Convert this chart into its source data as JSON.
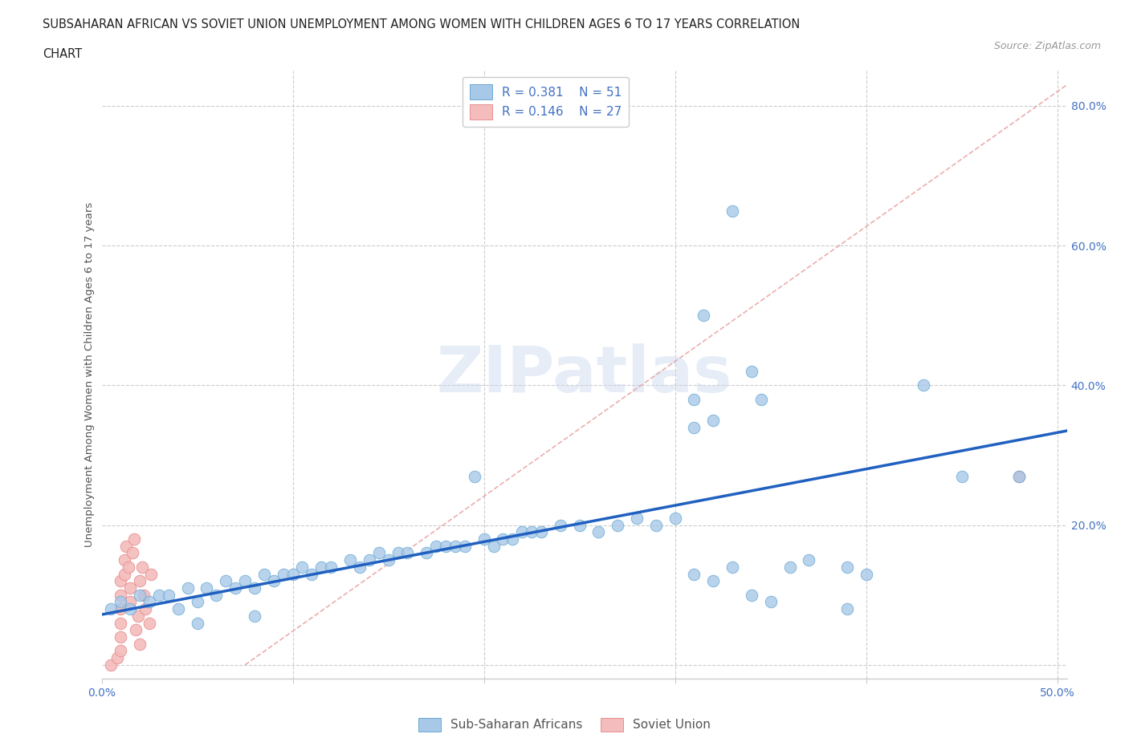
{
  "title_line1": "SUBSAHARAN AFRICAN VS SOVIET UNION UNEMPLOYMENT AMONG WOMEN WITH CHILDREN AGES 6 TO 17 YEARS CORRELATION",
  "title_line2": "CHART",
  "source_text": "Source: ZipAtlas.com",
  "ylabel": "Unemployment Among Women with Children Ages 6 to 17 years",
  "watermark": "ZIPatlas",
  "color_blue": "#A8C8E8",
  "color_blue_edge": "#6AAAD4",
  "color_pink": "#F4BCBC",
  "color_pink_edge": "#E89090",
  "color_blue_text": "#4472C4",
  "color_trendline": "#2060C0",
  "color_refline": "#E8A0A0",
  "xlim": [
    0.0,
    0.505
  ],
  "ylim": [
    -0.02,
    0.85
  ],
  "blue_scatter": [
    [
      0.005,
      0.08
    ],
    [
      0.01,
      0.09
    ],
    [
      0.015,
      0.08
    ],
    [
      0.02,
      0.1
    ],
    [
      0.025,
      0.09
    ],
    [
      0.03,
      0.1
    ],
    [
      0.035,
      0.1
    ],
    [
      0.04,
      0.08
    ],
    [
      0.045,
      0.11
    ],
    [
      0.05,
      0.09
    ],
    [
      0.055,
      0.11
    ],
    [
      0.06,
      0.1
    ],
    [
      0.065,
      0.12
    ],
    [
      0.07,
      0.11
    ],
    [
      0.075,
      0.12
    ],
    [
      0.08,
      0.11
    ],
    [
      0.085,
      0.13
    ],
    [
      0.09,
      0.12
    ],
    [
      0.095,
      0.13
    ],
    [
      0.1,
      0.13
    ],
    [
      0.105,
      0.14
    ],
    [
      0.11,
      0.13
    ],
    [
      0.115,
      0.14
    ],
    [
      0.12,
      0.14
    ],
    [
      0.13,
      0.15
    ],
    [
      0.135,
      0.14
    ],
    [
      0.14,
      0.15
    ],
    [
      0.145,
      0.16
    ],
    [
      0.15,
      0.15
    ],
    [
      0.155,
      0.16
    ],
    [
      0.16,
      0.16
    ],
    [
      0.17,
      0.16
    ],
    [
      0.175,
      0.17
    ],
    [
      0.18,
      0.17
    ],
    [
      0.185,
      0.17
    ],
    [
      0.19,
      0.17
    ],
    [
      0.2,
      0.18
    ],
    [
      0.205,
      0.17
    ],
    [
      0.21,
      0.18
    ],
    [
      0.215,
      0.18
    ],
    [
      0.22,
      0.19
    ],
    [
      0.225,
      0.19
    ],
    [
      0.23,
      0.19
    ],
    [
      0.24,
      0.2
    ],
    [
      0.25,
      0.2
    ],
    [
      0.26,
      0.19
    ],
    [
      0.27,
      0.2
    ],
    [
      0.28,
      0.21
    ],
    [
      0.29,
      0.2
    ],
    [
      0.3,
      0.21
    ],
    [
      0.05,
      0.06
    ],
    [
      0.08,
      0.07
    ],
    [
      0.31,
      0.13
    ],
    [
      0.32,
      0.12
    ],
    [
      0.33,
      0.14
    ],
    [
      0.34,
      0.1
    ],
    [
      0.35,
      0.09
    ],
    [
      0.36,
      0.14
    ],
    [
      0.37,
      0.15
    ],
    [
      0.39,
      0.08
    ],
    [
      0.195,
      0.27
    ],
    [
      0.31,
      0.38
    ],
    [
      0.31,
      0.34
    ],
    [
      0.315,
      0.5
    ],
    [
      0.32,
      0.35
    ],
    [
      0.34,
      0.42
    ],
    [
      0.345,
      0.38
    ],
    [
      0.33,
      0.65
    ],
    [
      0.43,
      0.4
    ],
    [
      0.45,
      0.27
    ],
    [
      0.48,
      0.27
    ],
    [
      0.39,
      0.14
    ],
    [
      0.4,
      0.13
    ]
  ],
  "pink_scatter": [
    [
      0.005,
      0.0
    ],
    [
      0.008,
      0.01
    ],
    [
      0.01,
      0.02
    ],
    [
      0.01,
      0.04
    ],
    [
      0.01,
      0.06
    ],
    [
      0.01,
      0.08
    ],
    [
      0.01,
      0.1
    ],
    [
      0.01,
      0.12
    ],
    [
      0.012,
      0.13
    ],
    [
      0.012,
      0.15
    ],
    [
      0.013,
      0.17
    ],
    [
      0.014,
      0.14
    ],
    [
      0.015,
      0.09
    ],
    [
      0.015,
      0.11
    ],
    [
      0.016,
      0.16
    ],
    [
      0.017,
      0.18
    ],
    [
      0.018,
      0.05
    ],
    [
      0.019,
      0.07
    ],
    [
      0.02,
      0.03
    ],
    [
      0.02,
      0.12
    ],
    [
      0.021,
      0.14
    ],
    [
      0.022,
      0.1
    ],
    [
      0.023,
      0.08
    ],
    [
      0.025,
      0.06
    ],
    [
      0.026,
      0.13
    ],
    [
      0.48,
      0.27
    ]
  ],
  "trendline_x": [
    0.0,
    0.505
  ],
  "trendline_y": [
    0.072,
    0.335
  ],
  "refline_x": [
    0.075,
    0.505
  ],
  "refline_y": [
    0.0,
    0.83
  ]
}
